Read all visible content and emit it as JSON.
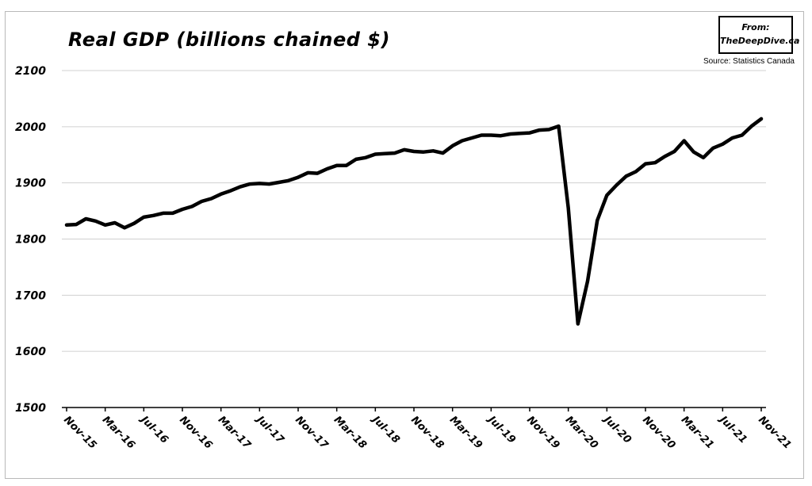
{
  "chart_data": {
    "type": "line",
    "title": "Real GDP (billions chained $)",
    "source_from": "From:",
    "source_site": "TheDeepDive.ca",
    "source_note": "Source: Statistics Canada",
    "xlabel": "",
    "ylabel": "",
    "ylim": [
      1500,
      2100
    ],
    "yticks": [
      1500,
      1600,
      1700,
      1800,
      1900,
      2000,
      2100
    ],
    "xtick_labels": [
      "Nov-15",
      "Mar-16",
      "Jul-16",
      "Nov-16",
      "Mar-17",
      "Jul-17",
      "Nov-17",
      "Mar-18",
      "Jul-18",
      "Nov-18",
      "Mar-19",
      "Jul-19",
      "Nov-19",
      "Mar-20",
      "Jul-20",
      "Nov-20",
      "Mar-21",
      "Jul-21",
      "Nov-21"
    ],
    "grid": true,
    "series": [
      {
        "name": "",
        "color": "#000000",
        "values": [
          1825,
          1826,
          1836,
          1832,
          1825,
          1829,
          1820,
          1828,
          1839,
          1842,
          1846,
          1846,
          1853,
          1858,
          1867,
          1872,
          1880,
          1886,
          1893,
          1898,
          1899,
          1898,
          1901,
          1904,
          1910,
          1918,
          1917,
          1925,
          1931,
          1931,
          1942,
          1945,
          1951,
          1952,
          1953,
          1959,
          1956,
          1955,
          1957,
          1953,
          1966,
          1975,
          1980,
          1985,
          1985,
          1984,
          1987,
          1988,
          1989,
          1994,
          1995,
          2001,
          1855,
          1649,
          1725,
          1833,
          1878,
          1896,
          1912,
          1920,
          1934,
          1936,
          1947,
          1956,
          1975,
          1955,
          1945,
          1962,
          1969,
          1980,
          1985,
          2001,
          2014
        ]
      }
    ]
  }
}
